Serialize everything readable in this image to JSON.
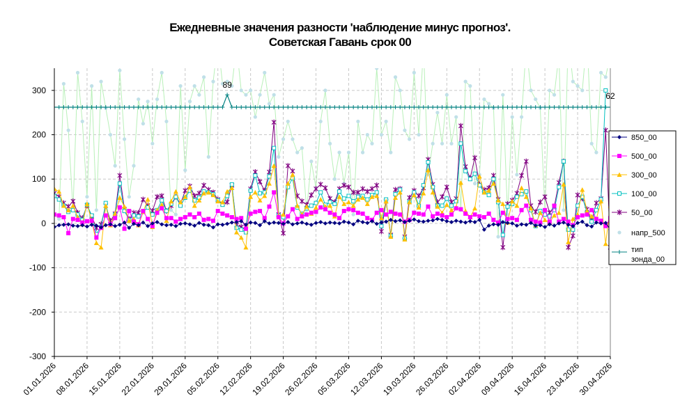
{
  "title_line1": "Ежедневные значения разности 'наблюдение минус прогноз'.",
  "title_line2": "Советская Гавань     срок 00",
  "chart_data": {
    "type": "line",
    "title": "Ежедневные значения разности 'наблюдение минус прогноз'. Советская Гавань срок 00",
    "ylim": [
      -300,
      350
    ],
    "y_ticks": [
      -300,
      -200,
      -100,
      0,
      100,
      200,
      300
    ],
    "grid": true,
    "legend_placement": "right",
    "x_tick_labels": [
      "01.01.2026",
      "08.01.2026",
      "15.01.2026",
      "22.01.2026",
      "29.01.2026",
      "05.02.2026",
      "12.02.2026",
      "19.02.2026",
      "26.02.2026",
      "05.03.2026",
      "12.03.2026",
      "19.03.2026",
      "26.03.2026",
      "02.04.2026",
      "09.04.2026",
      "16.04.2026",
      "23.04.2026",
      "30.04.2026"
    ],
    "days": 120,
    "series": [
      {
        "name": "850_00",
        "color": "#000080",
        "marker": "diamond",
        "values": [
          -8,
          -4,
          -3,
          -2,
          -5,
          -6,
          -4,
          -7,
          -3,
          -5,
          -9,
          -4,
          -2,
          -6,
          -3,
          2,
          -10,
          -1,
          -4,
          2,
          -6,
          0,
          3,
          -2,
          -4,
          -3,
          -6,
          -1,
          0,
          -2,
          -5,
          1,
          -3,
          -4,
          -9,
          -2,
          -3,
          -1,
          2,
          3,
          5,
          -3,
          2,
          1,
          -4,
          5,
          0,
          2,
          1,
          -1,
          3,
          -2,
          0,
          2,
          -1,
          -3,
          1,
          3,
          0,
          2,
          1,
          0,
          4,
          2,
          -2,
          6,
          3,
          1,
          5,
          -1,
          2,
          4,
          8,
          5,
          7,
          3,
          6,
          9,
          5,
          4,
          6,
          7,
          10,
          8,
          5,
          3,
          6,
          4,
          2,
          5,
          3,
          8,
          -14,
          -5,
          -2,
          -3,
          3,
          1,
          0,
          -5,
          -2,
          -3,
          1,
          -5,
          -4,
          -8,
          -2,
          -5,
          0,
          2,
          -3,
          -6,
          1,
          4,
          -4,
          -7,
          2,
          0,
          1,
          -14
        ]
      },
      {
        "name": "500_00",
        "color": "#ff00ff",
        "marker": "square",
        "values": [
          20,
          18,
          14,
          -22,
          10,
          8,
          2,
          5,
          6,
          -32,
          -10,
          18,
          -2,
          12,
          36,
          -12,
          28,
          4,
          -2,
          28,
          10,
          -6,
          24,
          34,
          12,
          12,
          4,
          10,
          14,
          20,
          14,
          22,
          8,
          10,
          6,
          28,
          22,
          18,
          14,
          10,
          12,
          -12,
          22,
          26,
          28,
          12,
          38,
          70,
          14,
          0,
          16,
          32,
          10,
          16,
          20,
          24,
          26,
          36,
          32,
          24,
          20,
          12,
          28,
          32,
          30,
          24,
          22,
          12,
          8,
          24,
          30,
          20,
          26,
          22,
          20,
          4,
          8,
          24,
          22,
          20,
          38,
          16,
          22,
          18,
          14,
          20,
          34,
          32,
          22,
          14,
          20,
          16,
          14,
          22,
          8,
          2,
          24,
          10,
          12,
          8,
          30,
          40,
          8,
          4,
          2,
          30,
          4,
          40,
          4,
          10,
          4,
          -4,
          14,
          18,
          20,
          30,
          10,
          6,
          -6,
          12
        ]
      },
      {
        "name": "300_00",
        "color": "#ffc000",
        "marker": "triangle",
        "values": [
          78,
          72,
          40,
          30,
          40,
          14,
          -2,
          44,
          6,
          -44,
          -54,
          40,
          -4,
          22,
          58,
          38,
          6,
          10,
          -4,
          26,
          54,
          -8,
          30,
          42,
          6,
          50,
          72,
          48,
          60,
          82,
          40,
          52,
          68,
          70,
          64,
          50,
          48,
          72,
          80,
          -20,
          -32,
          -54,
          60,
          70,
          52,
          62,
          90,
          130,
          18,
          20,
          90,
          110,
          40,
          20,
          38,
          22,
          36,
          54,
          38,
          40,
          16,
          60,
          44,
          48,
          40,
          54,
          58,
          44,
          60,
          62,
          12,
          50,
          -30,
          58,
          70,
          -36,
          48,
          64,
          36,
          68,
          120,
          70,
          38,
          24,
          42,
          30,
          36,
          92,
          28,
          14,
          34,
          106,
          70,
          74,
          90,
          52,
          44,
          2,
          50,
          40,
          80,
          60,
          34,
          -4,
          24,
          8,
          2,
          18,
          24,
          88,
          -42,
          10,
          20,
          76,
          28,
          16,
          10,
          50,
          -46,
          40
        ]
      },
      {
        "name": "100_00",
        "color": "#00c0c0",
        "marker": "square-open",
        "values": [
          62,
          54,
          40,
          26,
          30,
          20,
          8,
          42,
          18,
          -24,
          -8,
          46,
          -4,
          20,
          90,
          28,
          8,
          18,
          16,
          26,
          36,
          20,
          30,
          52,
          28,
          44,
          60,
          40,
          58,
          74,
          52,
          58,
          72,
          70,
          66,
          52,
          42,
          62,
          88,
          -10,
          -14,
          -20,
          74,
          108,
          68,
          70,
          106,
          170,
          18,
          14,
          82,
          102,
          36,
          22,
          34,
          40,
          46,
          70,
          42,
          48,
          44,
          72,
          56,
          62,
          50,
          60,
          62,
          54,
          64,
          70,
          -6,
          54,
          -28,
          66,
          76,
          -34,
          48,
          70,
          40,
          86,
          138,
          82,
          40,
          40,
          56,
          40,
          50,
          180,
          118,
          100,
          112,
          86,
          70,
          64,
          100,
          48,
          -26,
          38,
          44,
          60,
          66,
          72,
          30,
          -6,
          28,
          20,
          16,
          30,
          82,
          140,
          -14,
          -14,
          40,
          60,
          24,
          4,
          30,
          54,
          300
        ]
      },
      {
        "name": "50_00",
        "color": "#800080",
        "marker": "star",
        "values": [
          68,
          60,
          46,
          38,
          50,
          24,
          12,
          40,
          16,
          -10,
          -2,
          40,
          6,
          22,
          108,
          32,
          10,
          24,
          24,
          54,
          40,
          28,
          60,
          62,
          28,
          40,
          60,
          44,
          74,
          84,
          62,
          68,
          86,
          76,
          70,
          54,
          44,
          48,
          86,
          -4,
          -8,
          -14,
          78,
          116,
          94,
          74,
          116,
          228,
          20,
          -22,
          130,
          118,
          62,
          50,
          42,
          64,
          78,
          88,
          80,
          56,
          48,
          78,
          86,
          82,
          70,
          70,
          78,
          72,
          78,
          86,
          -18,
          50,
          -26,
          76,
          78,
          -30,
          58,
          74,
          62,
          80,
          144,
          88,
          48,
          60,
          82,
          48,
          56,
          220,
          128,
          102,
          148,
          88,
          76,
          80,
          108,
          54,
          -54,
          44,
          52,
          68,
          108,
          140,
          40,
          26,
          48,
          60,
          24,
          38,
          92,
          140,
          -54,
          -28,
          64,
          56,
          32,
          6,
          46,
          56,
          210,
          -54
        ]
      },
      {
        "name": "напр_500",
        "color": "#c0e0e8",
        "marker": "dot",
        "values": [
          20,
          10,
          315,
          210,
          30,
          340,
          230,
          60,
          310,
          30,
          320,
          260,
          200,
          130,
          345,
          190,
          60,
          130,
          280,
          225,
          275,
          180,
          280,
          340,
          230,
          30,
          20,
          310,
          120,
          275,
          310,
          290,
          330,
          150,
          320,
          410,
          315,
          320,
          310,
          400,
          300,
          290,
          300,
          240,
          290,
          340,
          270,
          290,
          150,
          190,
          230,
          190,
          160,
          170,
          30,
          140,
          80,
          230,
          300,
          180,
          100,
          160,
          90,
          160,
          20,
          230,
          160,
          200,
          180,
          350,
          200,
          230,
          160,
          330,
          300,
          210,
          190,
          340,
          200,
          400,
          110,
          180,
          250,
          180,
          290,
          180,
          240,
          30,
          320,
          310,
          90,
          110,
          280,
          270,
          260,
          -30,
          290,
          20,
          240,
          110,
          240,
          400,
          300,
          280,
          260,
          30,
          300,
          290,
          380,
          30,
          420,
          320,
          310,
          300,
          420,
          180,
          160,
          340,
          330,
          380
        ]
      }
    ],
    "tip_zonda": {
      "name": "тип зонда_00",
      "color": "#008080",
      "value": 262,
      "spike_day": 37,
      "spike_value": 290
    },
    "annotations": [
      {
        "text": "89",
        "day": 37
      },
      {
        "text": "62",
        "day": 119
      }
    ]
  }
}
